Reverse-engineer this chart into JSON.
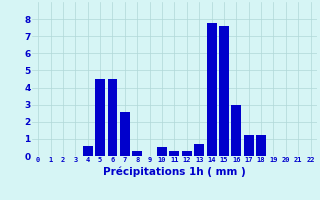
{
  "hours": [
    0,
    1,
    2,
    3,
    4,
    5,
    6,
    7,
    8,
    9,
    10,
    11,
    12,
    13,
    14,
    15,
    16,
    17,
    18,
    19,
    20,
    21,
    22
  ],
  "values": [
    0,
    0,
    0,
    0,
    0.6,
    4.5,
    4.5,
    2.6,
    0.3,
    0,
    0.5,
    0.3,
    0.3,
    0.7,
    7.8,
    7.6,
    3.0,
    1.2,
    1.2,
    0,
    0,
    0,
    0
  ],
  "bar_color": "#0000cc",
  "background_color": "#d6f5f5",
  "grid_color": "#b0d8d8",
  "xlabel": "Précipitations 1h ( mm )",
  "xlabel_color": "#0000cc",
  "tick_color": "#0000cc",
  "ylim": [
    0,
    9
  ],
  "yticks": [
    0,
    1,
    2,
    3,
    4,
    5,
    6,
    7,
    8
  ],
  "bar_width": 0.8
}
